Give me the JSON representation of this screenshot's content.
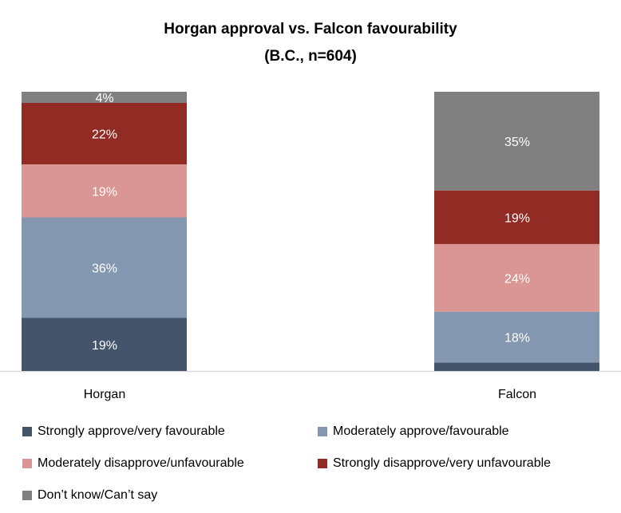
{
  "chart_data": {
    "type": "bar",
    "stacked": true,
    "title": "Horgan approval vs. Falcon favourability",
    "subtitle": "(B.C., n=604)",
    "categories": [
      "Horgan",
      "Falcon"
    ],
    "series": [
      {
        "name": "Strongly approve/very favourable",
        "color": "#44546a",
        "values": [
          19,
          3
        ],
        "labels": [
          "19%",
          ""
        ]
      },
      {
        "name": "Moderately approve/favourable",
        "color": "#8497b0",
        "values": [
          36,
          18
        ],
        "labels": [
          "36%",
          "18%"
        ]
      },
      {
        "name": "Moderately disapprove/unfavourable",
        "color": "#da9694",
        "values": [
          19,
          24
        ],
        "labels": [
          "19%",
          "24%"
        ]
      },
      {
        "name": "Strongly disapprove/very unfavourable",
        "color": "#922b23",
        "values": [
          22,
          19
        ],
        "labels": [
          "22%",
          "19%"
        ]
      },
      {
        "name": "Don’t know/Can’t say",
        "color": "#808080",
        "values": [
          4,
          35
        ],
        "labels": [
          "4%",
          "35%"
        ]
      }
    ],
    "ylim": [
      0,
      100
    ],
    "grid": false,
    "legend_position": "bottom"
  }
}
